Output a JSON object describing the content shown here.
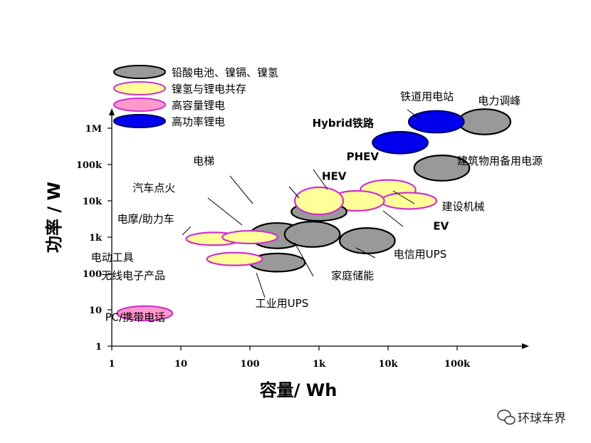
{
  "chart_data": {
    "type": "scatter",
    "x_axis": {
      "label": "容量/ Wh",
      "scale": "log",
      "range": [
        1,
        1000000
      ],
      "ticks": [
        {
          "value": 1,
          "label": "1"
        },
        {
          "value": 10,
          "label": "10"
        },
        {
          "value": 100,
          "label": "100"
        },
        {
          "value": 1000,
          "label": "1k"
        },
        {
          "value": 10000,
          "label": "10k"
        },
        {
          "value": 100000,
          "label": "100k"
        }
      ]
    },
    "y_axis": {
      "label": "功率 / W",
      "scale": "log",
      "range": [
        1,
        10000000
      ],
      "ticks": [
        {
          "value": 1,
          "label": "1"
        },
        {
          "value": 10,
          "label": "10"
        },
        {
          "value": 100,
          "label": "100"
        },
        {
          "value": 1000,
          "label": "1k"
        },
        {
          "value": 10000,
          "label": "10k"
        },
        {
          "value": 100000,
          "label": "100k"
        },
        {
          "value": 1000000,
          "label": "1M"
        }
      ]
    },
    "legend": {
      "position": "top-left",
      "items": [
        {
          "key": "lead",
          "label": "铅酸电池、镍镉、镍氢",
          "fill": "#999999",
          "stroke": "#000000"
        },
        {
          "key": "nimh_li",
          "label": "镍氢与锂电共存",
          "fill": "#ffff99",
          "stroke": "#cc33cc"
        },
        {
          "key": "li_cap",
          "label": "高容量锂电",
          "fill": "#ff99cc",
          "stroke": "#cc33cc"
        },
        {
          "key": "li_pow",
          "label": "高功率锂电",
          "fill": "#0000ee",
          "stroke": "#000066"
        }
      ]
    },
    "regions": [
      {
        "series": "lead",
        "x": 250000,
        "y": 1500000,
        "x_decades": 0.75,
        "y_decades": 0.7
      },
      {
        "series": "li_pow",
        "x": 50000,
        "y": 1500000,
        "x_decades": 0.8,
        "y_decades": 0.6
      },
      {
        "series": "li_pow",
        "x": 15000,
        "y": 400000,
        "x_decades": 0.8,
        "y_decades": 0.6
      },
      {
        "series": "lead",
        "x": 60000,
        "y": 80000,
        "x_decades": 0.8,
        "y_decades": 0.7
      },
      {
        "series": "nimh_li",
        "x": 10000,
        "y": 20000,
        "x_decades": 0.8,
        "y_decades": 0.55
      },
      {
        "series": "nimh_li",
        "x": 20000,
        "y": 10000,
        "x_decades": 0.8,
        "y_decades": 0.45
      },
      {
        "series": "nimh_li",
        "x": 3500,
        "y": 10000,
        "x_decades": 0.8,
        "y_decades": 0.55
      },
      {
        "series": "lead",
        "x": 1000,
        "y": 5000,
        "x_decades": 0.8,
        "y_decades": 0.5
      },
      {
        "series": "nimh_li",
        "x": 1000,
        "y": 10000,
        "x_decades": 0.7,
        "y_decades": 0.75
      },
      {
        "series": "lead",
        "x": 250,
        "y": 1100,
        "x_decades": 0.8,
        "y_decades": 0.7
      },
      {
        "series": "lead",
        "x": 800,
        "y": 1200,
        "x_decades": 0.8,
        "y_decades": 0.7
      },
      {
        "series": "lead",
        "x": 5000,
        "y": 800,
        "x_decades": 0.8,
        "y_decades": 0.7
      },
      {
        "series": "lead",
        "x": 250,
        "y": 200,
        "x_decades": 0.8,
        "y_decades": 0.5
      },
      {
        "series": "nimh_li",
        "x": 30,
        "y": 900,
        "x_decades": 0.8,
        "y_decades": 0.35
      },
      {
        "series": "nimh_li",
        "x": 100,
        "y": 1000,
        "x_decades": 0.8,
        "y_decades": 0.35
      },
      {
        "series": "nimh_li",
        "x": 60,
        "y": 250,
        "x_decades": 0.8,
        "y_decades": 0.35
      },
      {
        "series": "li_cap",
        "x": 3,
        "y": 8,
        "x_decades": 0.8,
        "y_decades": 0.4
      }
    ],
    "annotations": [
      {
        "text": "铁道用电站",
        "x": 15000,
        "y": 6000000,
        "weight": "normal"
      },
      {
        "text": "电力调峰",
        "x": 200000,
        "y": 4500000,
        "weight": "normal"
      },
      {
        "text": "Hybrid铁路",
        "x": 800,
        "y": 1100000,
        "weight": "bold"
      },
      {
        "text": "建筑物用备用电源",
        "x": 100000,
        "y": 100000,
        "weight": "normal"
      },
      {
        "text": "电梯",
        "x": 15,
        "y": 100000,
        "weight": "normal"
      },
      {
        "text": "PHEV",
        "x": 2500,
        "y": 130000,
        "weight": "bold"
      },
      {
        "text": "HEV",
        "x": 1100,
        "y": 38000,
        "weight": "bold"
      },
      {
        "text": "汽车点火",
        "x": 2,
        "y": 18000,
        "weight": "normal"
      },
      {
        "text": "建设机械",
        "x": 60000,
        "y": 5500,
        "weight": "normal"
      },
      {
        "text": "电摩/助力车",
        "x": 1.2,
        "y": 2500,
        "weight": "normal"
      },
      {
        "text": "EV",
        "x": 45000,
        "y": 1600,
        "weight": "bold"
      },
      {
        "text": "电动工具",
        "x": 0.5,
        "y": 220,
        "weight": "normal"
      },
      {
        "text": "电信用UPS",
        "x": 12000,
        "y": 270,
        "weight": "normal"
      },
      {
        "text": "无线电子产品",
        "x": 0.7,
        "y": 70,
        "weight": "normal"
      },
      {
        "text": "家庭储能",
        "x": 1500,
        "y": 70,
        "weight": "normal"
      },
      {
        "text": "工业用UPS",
        "x": 120,
        "y": 12,
        "weight": "normal"
      },
      {
        "text": "PC/携带电话",
        "x": 0.8,
        "y": 5,
        "weight": "normal"
      }
    ]
  },
  "watermark": {
    "text": "环球车界",
    "icon": "wechat-icon"
  }
}
